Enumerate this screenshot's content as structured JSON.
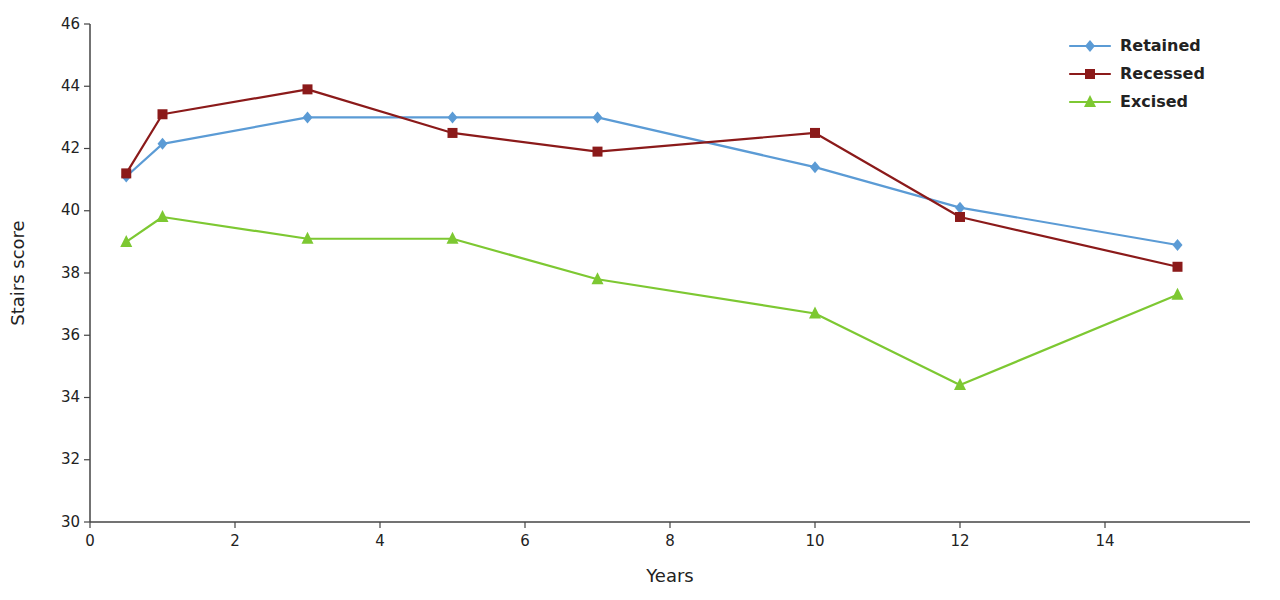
{
  "chart_data": {
    "type": "line",
    "xlabel": "Years",
    "ylabel": "Stairs score",
    "x": [
      0.5,
      1,
      3,
      5,
      7,
      10,
      12,
      15
    ],
    "series": [
      {
        "name": "Retained",
        "color": "#5b9bd5",
        "marker": "diamond",
        "values": [
          41.1,
          42.15,
          43.0,
          43.0,
          43.0,
          41.4,
          40.1,
          38.9
        ]
      },
      {
        "name": "Recessed",
        "color": "#8B1A1A",
        "marker": "square",
        "values": [
          41.2,
          43.1,
          43.9,
          42.5,
          41.9,
          42.5,
          39.8,
          38.2
        ]
      },
      {
        "name": "Excised",
        "color": "#7dc832",
        "marker": "triangle",
        "values": [
          39.0,
          39.8,
          39.1,
          39.1,
          37.8,
          36.7,
          34.4,
          37.3
        ]
      }
    ],
    "xlim": [
      0,
      16
    ],
    "ylim": [
      30,
      46
    ],
    "xticks": [
      0,
      2,
      4,
      6,
      8,
      10,
      12,
      14
    ],
    "yticks": [
      30,
      32,
      34,
      36,
      38,
      40,
      42,
      44,
      46
    ],
    "legend": "upper right"
  }
}
